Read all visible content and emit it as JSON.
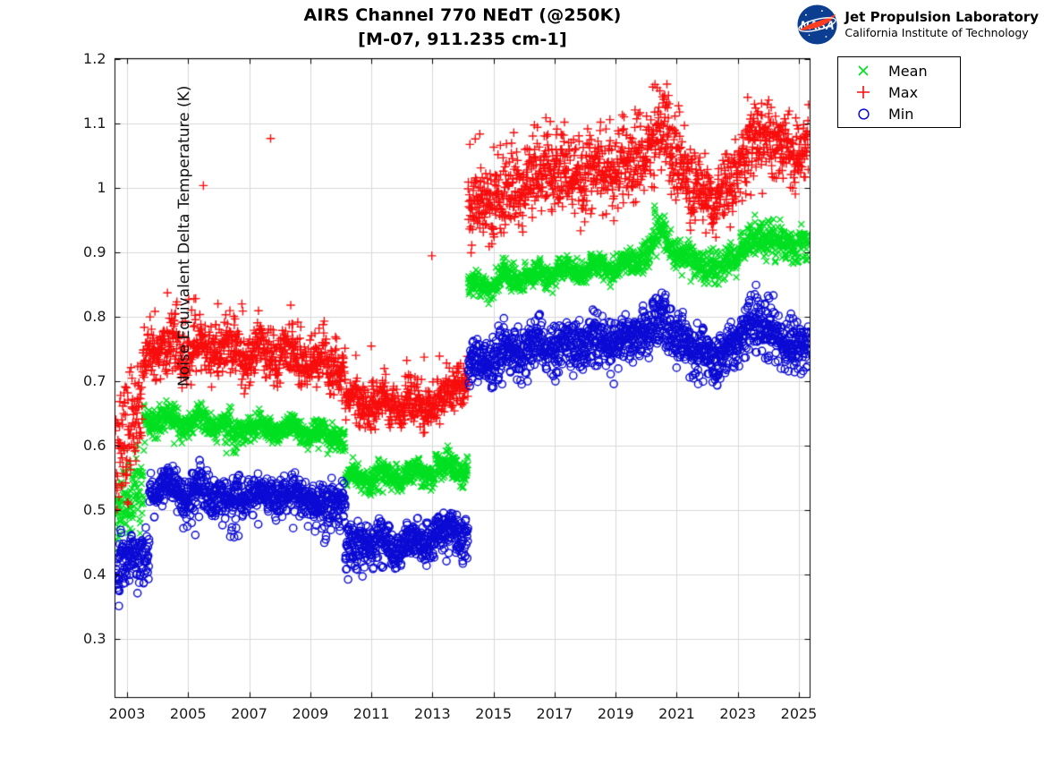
{
  "header": {
    "title_line1": "AIRS Channel 770 NEdT (@250K)",
    "title_line2": "[M-07, 911.235 cm-1]",
    "logo_org": "NASA",
    "logo_line1": "Jet Propulsion Laboratory",
    "logo_line2": "California Institute of Technology"
  },
  "legend": {
    "items": [
      {
        "label": "Mean",
        "marker": "x"
      },
      {
        "label": "Max",
        "marker": "+"
      },
      {
        "label": "Min",
        "marker": "o"
      }
    ]
  },
  "chart_data": {
    "type": "scatter",
    "title": "AIRS Channel 770 NEdT (@250K) [M-07, 911.235 cm-1]",
    "xlabel": "",
    "ylabel": "Noise Equivalent Delta Temperature (K)",
    "xlim": [
      2002.604,
      2025.366
    ],
    "ylim": [
      0.2088,
      1.2
    ],
    "grid": true,
    "legend_position": "outside-top-right",
    "x_ticks": [
      2003,
      2005,
      2007,
      2009,
      2011,
      2013,
      2015,
      2017,
      2019,
      2021,
      2023,
      2025
    ],
    "x_tick_labels": [
      "2003",
      "2005",
      "2007",
      "2009",
      "2011",
      "2013",
      "2015",
      "2017",
      "2019",
      "2021",
      "2023",
      "2025"
    ],
    "y_ticks": [
      0.3,
      0.4,
      0.5,
      0.6,
      0.7,
      0.8,
      0.9,
      1.0,
      1.1,
      1.2
    ],
    "y_tick_labels": [
      "0.3",
      "0.4",
      "0.5",
      "0.6",
      "0.7",
      "0.8",
      "0.9",
      "1",
      "1.1",
      "1.2"
    ],
    "grid_color": "#d9d9d9",
    "series": [
      {
        "name": "Mean",
        "marker": "x",
        "color": "#00e020",
        "segments": [
          {
            "t0": 2002.62,
            "t1": 2003.55,
            "v0": 0.497,
            "v1": 0.552,
            "sd": 0.03,
            "season": 0.0
          },
          {
            "t0": 2003.55,
            "t1": 2006.2,
            "v0": 0.639,
            "v1": 0.634,
            "sd": 0.0095,
            "season": 0.008,
            "hi_p": 0.01,
            "hi": [
              0.65,
              0.668
            ],
            "lo_p": 0.008,
            "lo": [
              0.6,
              0.615
            ]
          },
          {
            "t0": 2006.2,
            "t1": 2006.7,
            "v0": 0.625,
            "v1": 0.618,
            "sd": 0.013,
            "season": 0.006,
            "lo_p": 0.1,
            "lo": [
              0.585,
              0.61
            ]
          },
          {
            "t0": 2006.7,
            "t1": 2009.2,
            "v0": 0.63,
            "v1": 0.622,
            "sd": 0.009,
            "season": 0.008
          },
          {
            "t0": 2009.2,
            "t1": 2010.15,
            "v0": 0.618,
            "v1": 0.612,
            "sd": 0.01,
            "season": 0.006,
            "lo_p": 0.06,
            "lo": [
              0.585,
              0.603
            ]
          },
          {
            "t0": 2010.15,
            "t1": 2011.6,
            "v0": 0.552,
            "v1": 0.55,
            "sd": 0.0095,
            "season": 0.007,
            "lo_p": 0.02,
            "lo": [
              0.525,
              0.54
            ]
          },
          {
            "t0": 2011.6,
            "t1": 2013.1,
            "v0": 0.552,
            "v1": 0.558,
            "sd": 0.0095,
            "season": 0.007
          },
          {
            "t0": 2013.1,
            "t1": 2013.7,
            "v0": 0.568,
            "v1": 0.57,
            "sd": 0.01,
            "season": 0.004,
            "hi_p": 0.05,
            "hi": [
              0.582,
              0.592
            ]
          },
          {
            "t0": 2013.7,
            "t1": 2014.17,
            "v0": 0.562,
            "v1": 0.558,
            "sd": 0.009,
            "season": 0.004
          },
          {
            "t0": 2014.17,
            "t1": 2015.2,
            "v0": 0.846,
            "v1": 0.852,
            "sd": 0.01,
            "season": 0.006,
            "lo_p": 0.02,
            "lo": [
              0.825,
              0.838
            ]
          },
          {
            "t0": 2015.2,
            "t1": 2017.2,
            "v0": 0.858,
            "v1": 0.869,
            "sd": 0.01,
            "season": 0.007
          },
          {
            "t0": 2017.2,
            "t1": 2019.8,
            "v0": 0.869,
            "v1": 0.882,
            "sd": 0.01,
            "season": 0.007
          },
          {
            "t0": 2019.8,
            "t1": 2020.25,
            "v0": 0.885,
            "v1": 0.905,
            "sd": 0.011,
            "season": 0.0
          },
          {
            "t0": 2020.25,
            "t1": 2020.65,
            "v0": 0.93,
            "v1": 0.935,
            "sd": 0.014,
            "season": 0.0,
            "hi_p": 0.12,
            "hi": [
              0.95,
              0.974
            ]
          },
          {
            "t0": 2020.65,
            "t1": 2021.1,
            "v0": 0.912,
            "v1": 0.898,
            "sd": 0.011,
            "season": 0.0
          },
          {
            "t0": 2021.1,
            "t1": 2022.4,
            "v0": 0.893,
            "v1": 0.872,
            "sd": 0.011,
            "season": 0.005,
            "lo_p": 0.03,
            "lo": [
              0.845,
              0.862
            ]
          },
          {
            "t0": 2022.4,
            "t1": 2023.4,
            "v0": 0.875,
            "v1": 0.912,
            "sd": 0.011,
            "season": 0.005
          },
          {
            "t0": 2023.4,
            "t1": 2024.2,
            "v0": 0.92,
            "v1": 0.922,
            "sd": 0.013,
            "season": 0.0,
            "hi_p": 0.06,
            "hi": [
              0.945,
              0.968
            ]
          },
          {
            "t0": 2024.2,
            "t1": 2025.32,
            "v0": 0.912,
            "v1": 0.912,
            "sd": 0.012,
            "season": 0.006
          }
        ]
      },
      {
        "name": "Max",
        "marker": "+",
        "color": "#f80d0d",
        "segments": [
          {
            "t0": 2002.62,
            "t1": 2003.5,
            "v0": 0.573,
            "v1": 0.672,
            "sd": 0.042,
            "season": 0.0,
            "hi_p": 0.02,
            "hi": [
              0.69,
              0.72
            ]
          },
          {
            "t0": 2003.5,
            "t1": 2003.65,
            "v0": 0.71,
            "v1": 0.745,
            "sd": 0.022,
            "season": 0.0
          },
          {
            "t0": 2003.65,
            "t1": 2005.2,
            "v0": 0.751,
            "v1": 0.748,
            "sd": 0.021,
            "season": 0.013,
            "hi_p": 0.03,
            "hi": [
              0.79,
              0.845
            ]
          },
          {
            "t0": 2005.2,
            "t1": 2008.4,
            "v0": 0.748,
            "v1": 0.742,
            "sd": 0.02,
            "season": 0.013,
            "hi_p": 0.025,
            "hi": [
              0.785,
              0.84
            ]
          },
          {
            "t0": 2008.4,
            "t1": 2010.15,
            "v0": 0.738,
            "v1": 0.725,
            "sd": 0.019,
            "season": 0.012,
            "hi_p": 0.01,
            "hi": [
              0.78,
              0.81
            ]
          },
          {
            "t0": 2010.15,
            "t1": 2011.0,
            "v0": 0.668,
            "v1": 0.662,
            "sd": 0.018,
            "season": 0.01,
            "hi_p": 0.015,
            "hi": [
              0.7,
              0.78
            ]
          },
          {
            "t0": 2011.0,
            "t1": 2013.2,
            "v0": 0.662,
            "v1": 0.668,
            "sd": 0.017,
            "season": 0.01,
            "hi_p": 0.01,
            "hi": [
              0.7,
              0.74
            ]
          },
          {
            "t0": 2013.2,
            "t1": 2014.17,
            "v0": 0.675,
            "v1": 0.7,
            "sd": 0.018,
            "season": 0.0,
            "hi_p": 0.02,
            "hi": [
              0.72,
              0.76
            ]
          },
          {
            "t0": 2014.17,
            "t1": 2014.45,
            "v0": 0.965,
            "v1": 0.975,
            "sd": 0.03,
            "season": 0.0,
            "hi_p": 0.04,
            "hi": [
              1.03,
              1.085
            ]
          },
          {
            "t0": 2014.45,
            "t1": 2015.4,
            "v0": 0.975,
            "v1": 0.982,
            "sd": 0.026,
            "season": 0.012,
            "hi_p": 0.02,
            "hi": [
              1.03,
              1.085
            ]
          },
          {
            "t0": 2015.4,
            "t1": 2016.3,
            "v0": 0.995,
            "v1": 1.005,
            "sd": 0.025,
            "season": 0.012,
            "hi_p": 0.02,
            "hi": [
              1.05,
              1.1
            ]
          },
          {
            "t0": 2016.3,
            "t1": 2017.1,
            "v0": 1.01,
            "v1": 1.025,
            "sd": 0.027,
            "season": 0.0,
            "hi_p": 0.04,
            "hi": [
              1.07,
              1.125
            ]
          },
          {
            "t0": 2017.1,
            "t1": 2019.5,
            "v0": 1.015,
            "v1": 1.03,
            "sd": 0.027,
            "season": 0.014,
            "hi_p": 0.03,
            "hi": [
              1.07,
              1.115
            ]
          },
          {
            "t0": 2019.5,
            "t1": 2020.2,
            "v0": 1.03,
            "v1": 1.06,
            "sd": 0.028,
            "season": 0.0,
            "hi_p": 0.03,
            "hi": [
              1.09,
              1.13
            ]
          },
          {
            "t0": 2020.2,
            "t1": 2020.7,
            "v0": 1.085,
            "v1": 1.09,
            "sd": 0.032,
            "season": 0.0,
            "hi_p": 0.1,
            "hi": [
              1.12,
              1.165
            ]
          },
          {
            "t0": 2020.7,
            "t1": 2021.3,
            "v0": 1.06,
            "v1": 1.03,
            "sd": 0.03,
            "season": 0.0,
            "hi_p": 0.05,
            "hi": [
              1.09,
              1.145
            ]
          },
          {
            "t0": 2021.3,
            "t1": 2022.4,
            "v0": 1.01,
            "v1": 0.975,
            "sd": 0.026,
            "season": 0.0,
            "lo_p": 0.05,
            "lo": [
              0.925,
              0.95
            ]
          },
          {
            "t0": 2022.4,
            "t1": 2023.3,
            "v0": 0.985,
            "v1": 1.05,
            "sd": 0.027,
            "season": 0.01
          },
          {
            "t0": 2023.3,
            "t1": 2024.1,
            "v0": 1.07,
            "v1": 1.075,
            "sd": 0.03,
            "season": 0.0,
            "hi_p": 0.08,
            "hi": [
              1.11,
              1.16
            ]
          },
          {
            "t0": 2024.1,
            "t1": 2025.32,
            "v0": 1.055,
            "v1": 1.06,
            "sd": 0.028,
            "season": 0.012,
            "hi_p": 0.02,
            "hi": [
              1.1,
              1.125
            ]
          }
        ]
      },
      {
        "name": "Min",
        "marker": "o",
        "color": "#0a0ad4",
        "segments": [
          {
            "t0": 2002.62,
            "t1": 2002.75,
            "v0": 0.405,
            "v1": 0.412,
            "sd": 0.022,
            "season": 0.0,
            "lo_p": 0.08,
            "lo": [
              0.365,
              0.385
            ]
          },
          {
            "t0": 2002.75,
            "t1": 2003.73,
            "v0": 0.423,
            "v1": 0.432,
            "sd": 0.021,
            "season": 0.0,
            "lo_p": 0.02,
            "lo": [
              0.385,
              0.405
            ]
          },
          {
            "t0": 2003.73,
            "t1": 2004.7,
            "v0": 0.534,
            "v1": 0.532,
            "sd": 0.014,
            "season": 0.009,
            "lo_p": 0.02,
            "lo": [
              0.475,
              0.51
            ]
          },
          {
            "t0": 2004.7,
            "t1": 2005.1,
            "v0": 0.522,
            "v1": 0.52,
            "sd": 0.016,
            "season": 0.008,
            "lo_p": 0.06,
            "lo": [
              0.465,
              0.5
            ]
          },
          {
            "t0": 2005.1,
            "t1": 2006.1,
            "v0": 0.53,
            "v1": 0.528,
            "sd": 0.014,
            "season": 0.009,
            "lo_p": 0.02,
            "lo": [
              0.46,
              0.5
            ]
          },
          {
            "t0": 2006.1,
            "t1": 2006.6,
            "v0": 0.518,
            "v1": 0.515,
            "sd": 0.016,
            "season": 0.0,
            "lo_p": 0.1,
            "lo": [
              0.45,
              0.49
            ]
          },
          {
            "t0": 2006.6,
            "t1": 2009.1,
            "v0": 0.525,
            "v1": 0.518,
            "sd": 0.014,
            "season": 0.009,
            "lo_p": 0.015,
            "lo": [
              0.45,
              0.49
            ]
          },
          {
            "t0": 2009.1,
            "t1": 2009.7,
            "v0": 0.508,
            "v1": 0.505,
            "sd": 0.016,
            "season": 0.0,
            "lo_p": 0.09,
            "lo": [
              0.44,
              0.48
            ]
          },
          {
            "t0": 2009.7,
            "t1": 2010.15,
            "v0": 0.512,
            "v1": 0.51,
            "sd": 0.014,
            "season": 0.0,
            "lo_p": 0.02,
            "lo": [
              0.46,
              0.49
            ]
          },
          {
            "t0": 2010.15,
            "t1": 2010.75,
            "v0": 0.448,
            "v1": 0.445,
            "sd": 0.016,
            "season": 0.0,
            "lo_p": 0.1,
            "lo": [
              0.385,
              0.425
            ]
          },
          {
            "t0": 2010.75,
            "t1": 2011.4,
            "v0": 0.45,
            "v1": 0.448,
            "sd": 0.014,
            "season": 0.008,
            "lo_p": 0.03,
            "lo": [
              0.4,
              0.43
            ]
          },
          {
            "t0": 2011.4,
            "t1": 2012.0,
            "v0": 0.445,
            "v1": 0.443,
            "sd": 0.015,
            "season": 0.008,
            "lo_p": 0.05,
            "lo": [
              0.4,
              0.43
            ]
          },
          {
            "t0": 2012.0,
            "t1": 2013.1,
            "v0": 0.448,
            "v1": 0.455,
            "sd": 0.014,
            "season": 0.008,
            "lo_p": 0.02,
            "lo": [
              0.405,
              0.435
            ]
          },
          {
            "t0": 2013.1,
            "t1": 2013.7,
            "v0": 0.465,
            "v1": 0.468,
            "sd": 0.014,
            "season": 0.0,
            "hi_p": 0.03,
            "hi": [
              0.49,
              0.505
            ],
            "lo_p": 0.02,
            "lo": [
              0.42,
              0.44
            ]
          },
          {
            "t0": 2013.7,
            "t1": 2014.17,
            "v0": 0.458,
            "v1": 0.452,
            "sd": 0.014,
            "season": 0.0,
            "lo_p": 0.04,
            "lo": [
              0.405,
              0.435
            ]
          },
          {
            "t0": 2014.17,
            "t1": 2015.3,
            "v0": 0.728,
            "v1": 0.738,
            "sd": 0.018,
            "season": 0.008,
            "lo_p": 0.02,
            "lo": [
              0.69,
              0.71
            ]
          },
          {
            "t0": 2015.3,
            "t1": 2017.3,
            "v0": 0.745,
            "v1": 0.755,
            "sd": 0.018,
            "season": 0.008,
            "lo_p": 0.01,
            "lo": [
              0.69,
              0.715
            ]
          },
          {
            "t0": 2017.3,
            "t1": 2019.6,
            "v0": 0.755,
            "v1": 0.765,
            "sd": 0.018,
            "season": 0.008,
            "lo_p": 0.01,
            "lo": [
              0.69,
              0.72
            ]
          },
          {
            "t0": 2019.6,
            "t1": 2020.2,
            "v0": 0.768,
            "v1": 0.778,
            "sd": 0.018,
            "season": 0.0
          },
          {
            "t0": 2020.2,
            "t1": 2020.7,
            "v0": 0.79,
            "v1": 0.795,
            "sd": 0.02,
            "season": 0.0,
            "hi_p": 0.06,
            "hi": [
              0.815,
              0.838
            ]
          },
          {
            "t0": 2020.7,
            "t1": 2021.4,
            "v0": 0.775,
            "v1": 0.765,
            "sd": 0.019,
            "season": 0.0
          },
          {
            "t0": 2021.4,
            "t1": 2022.4,
            "v0": 0.752,
            "v1": 0.732,
            "sd": 0.018,
            "season": 0.0,
            "lo_p": 0.04,
            "lo": [
              0.695,
              0.715
            ]
          },
          {
            "t0": 2022.4,
            "t1": 2023.3,
            "v0": 0.74,
            "v1": 0.775,
            "sd": 0.018,
            "season": 0.0
          },
          {
            "t0": 2023.3,
            "t1": 2024.3,
            "v0": 0.785,
            "v1": 0.78,
            "sd": 0.02,
            "season": 0.0,
            "hi_p": 0.05,
            "hi": [
              0.81,
              0.85
            ]
          },
          {
            "t0": 2024.3,
            "t1": 2025.32,
            "v0": 0.76,
            "v1": 0.75,
            "sd": 0.02,
            "season": 0.0,
            "lo_p": 0.03,
            "lo": [
              0.695,
              0.72
            ]
          }
        ]
      }
    ],
    "outlier_points": [
      {
        "series": "Max",
        "t": 2005.5,
        "v": 1.003
      },
      {
        "series": "Max",
        "t": 2007.7,
        "v": 1.076
      },
      {
        "series": "Max",
        "t": 2012.98,
        "v": 0.894
      },
      {
        "series": "Max",
        "t": 2014.55,
        "v": 1.083
      }
    ]
  }
}
